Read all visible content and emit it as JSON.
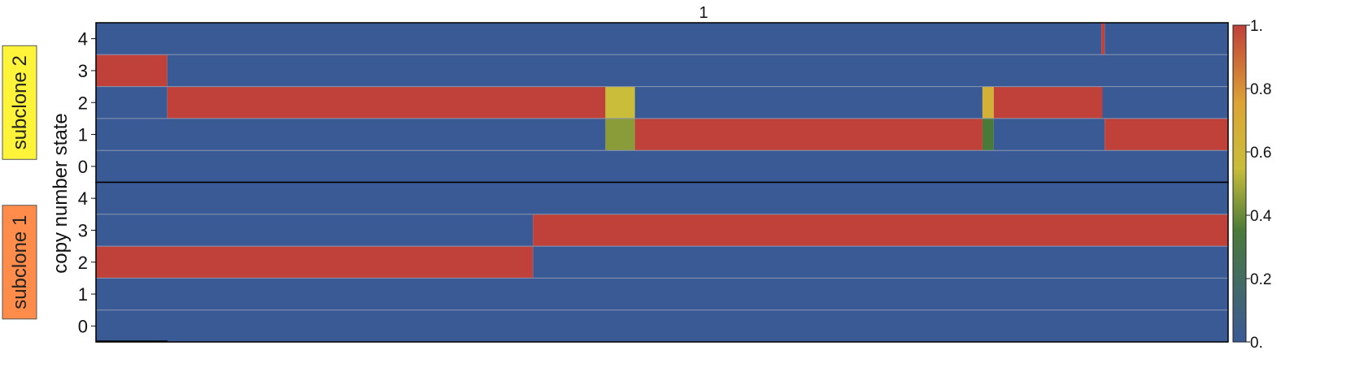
{
  "chart_data": {
    "type": "heatmap",
    "title": "1",
    "ylabel": "copy number state",
    "colorbar": {
      "ticks": [
        "0.",
        "0.2",
        "0.4",
        "0.6",
        "0.8",
        "1."
      ],
      "range": [
        0,
        1
      ],
      "colors": [
        "#3a5a96",
        "#4a7a3a",
        "#c9bd3a",
        "#dca535",
        "#c0403a"
      ]
    },
    "x_range": [
      0,
      1
    ],
    "panels": [
      {
        "label": "subclone 2",
        "label_color": "#fff43a",
        "states": [
          "4",
          "3",
          "2",
          "1",
          "0"
        ],
        "segments": {
          "4": [
            {
              "x0": 0.0,
              "x1": 0.888,
              "value": 0.0
            },
            {
              "x0": 0.888,
              "x1": 0.891,
              "value": 1.0
            },
            {
              "x0": 0.891,
              "x1": 1.0,
              "value": 0.0
            }
          ],
          "3": [
            {
              "x0": 0.0,
              "x1": 0.063,
              "value": 1.0
            },
            {
              "x0": 0.063,
              "x1": 1.0,
              "value": 0.0
            }
          ],
          "2": [
            {
              "x0": 0.0,
              "x1": 0.063,
              "value": 0.0
            },
            {
              "x0": 0.063,
              "x1": 0.45,
              "value": 1.0
            },
            {
              "x0": 0.45,
              "x1": 0.476,
              "value": 0.55
            },
            {
              "x0": 0.476,
              "x1": 0.783,
              "value": 0.0
            },
            {
              "x0": 0.783,
              "x1": 0.793,
              "value": 0.65
            },
            {
              "x0": 0.793,
              "x1": 0.889,
              "value": 1.0
            },
            {
              "x0": 0.889,
              "x1": 1.0,
              "value": 0.0
            }
          ],
          "1": [
            {
              "x0": 0.0,
              "x1": 0.45,
              "value": 0.0
            },
            {
              "x0": 0.45,
              "x1": 0.476,
              "value": 0.45
            },
            {
              "x0": 0.476,
              "x1": 0.783,
              "value": 1.0
            },
            {
              "x0": 0.783,
              "x1": 0.793,
              "value": 0.35
            },
            {
              "x0": 0.793,
              "x1": 0.891,
              "value": 0.0
            },
            {
              "x0": 0.891,
              "x1": 1.0,
              "value": 1.0
            }
          ],
          "0": [
            {
              "x0": 0.0,
              "x1": 1.0,
              "value": 0.0
            }
          ]
        }
      },
      {
        "label": "subclone 1",
        "label_color": "#ff8c4a",
        "states": [
          "4",
          "3",
          "2",
          "1",
          "0"
        ],
        "segments": {
          "4": [
            {
              "x0": 0.0,
              "x1": 1.0,
              "value": 0.0
            }
          ],
          "3": [
            {
              "x0": 0.0,
              "x1": 0.386,
              "value": 0.0
            },
            {
              "x0": 0.386,
              "x1": 1.0,
              "value": 1.0
            }
          ],
          "2": [
            {
              "x0": 0.0,
              "x1": 0.386,
              "value": 1.0
            },
            {
              "x0": 0.386,
              "x1": 1.0,
              "value": 0.0
            }
          ],
          "1": [
            {
              "x0": 0.0,
              "x1": 1.0,
              "value": 0.0
            }
          ],
          "0": [
            {
              "x0": 0.0,
              "x1": 1.0,
              "value": 0.0
            }
          ]
        }
      }
    ]
  }
}
